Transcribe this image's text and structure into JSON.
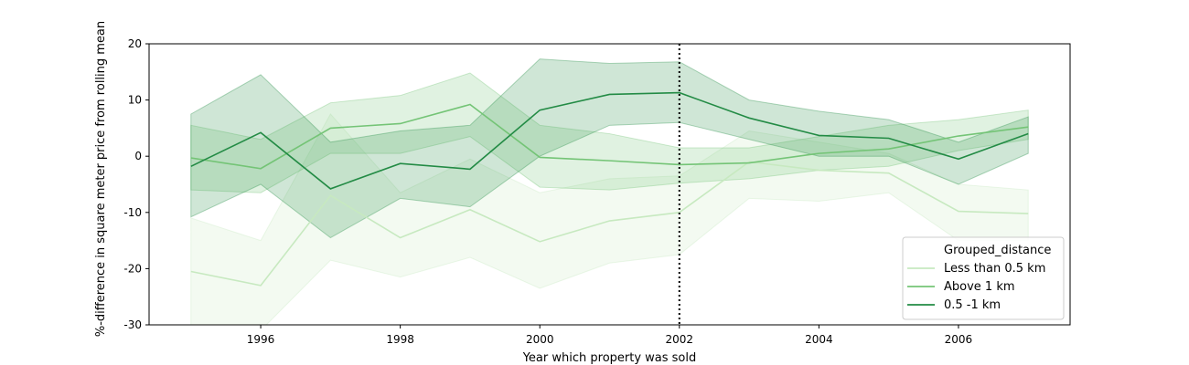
{
  "chart_data": {
    "type": "line",
    "title": "",
    "xlabel": "Year which property was sold",
    "ylabel": "%-difference in square meter price from rolling mean",
    "xlim": [
      1994.4,
      2007.6
    ],
    "ylim": [
      -30,
      20
    ],
    "xticks": [
      1996,
      1998,
      2000,
      2002,
      2004,
      2006
    ],
    "yticks": [
      -30,
      -20,
      -10,
      0,
      10,
      20
    ],
    "grid": false,
    "legend": {
      "title": "Grouped_distance",
      "placement": "lower-right"
    },
    "x": [
      1995,
      1996,
      1997,
      1998,
      1999,
      2000,
      2001,
      2002,
      2003,
      2004,
      2005,
      2006,
      2007
    ],
    "vline": {
      "x": 2002,
      "style": "dotted",
      "color": "#000000"
    },
    "series": [
      {
        "name": "Less than 0.5 km",
        "color": "#c7e9c0",
        "values": [
          -20.5,
          -23,
          -7,
          -14.5,
          -9.5,
          -15.2,
          -11.5,
          -10,
          -1,
          -2.5,
          -3,
          -9.8,
          -10.2
        ],
        "lower": [
          -32,
          -31,
          -18.5,
          -21.5,
          -18,
          -23.5,
          -19,
          -17.5,
          -7.5,
          -8,
          -6.5,
          -15,
          -15
        ],
        "upper": [
          -11,
          -15,
          7.5,
          -6.5,
          -0.5,
          -6.5,
          -4,
          -3.5,
          4.5,
          2.5,
          0.5,
          -5,
          -6
        ]
      },
      {
        "name": "Above 1 km",
        "color": "#74c476",
        "values": [
          -0.3,
          -2.2,
          5,
          5.8,
          9.2,
          -0.2,
          -0.8,
          -1.5,
          -1.2,
          0.5,
          1.3,
          3.6,
          5.2
        ],
        "lower": [
          -6,
          -6.5,
          0.5,
          0.5,
          3.5,
          -5.5,
          -6,
          -4.8,
          -4,
          -2.5,
          -1.8,
          1,
          3
        ],
        "upper": [
          5.5,
          3,
          9.5,
          10.8,
          14.8,
          5.5,
          4,
          1.5,
          1.5,
          3.5,
          5.5,
          6.5,
          8.2
        ]
      },
      {
        "name": "0.5 -1 km",
        "color": "#238b45",
        "values": [
          -1.8,
          4.2,
          -5.8,
          -1.3,
          -2.3,
          8.2,
          11.0,
          11.3,
          6.8,
          3.7,
          3.2,
          -0.5,
          4
        ],
        "lower": [
          -10.8,
          -5,
          -14.5,
          -7.5,
          -9,
          0,
          5.5,
          6,
          3,
          0,
          0,
          -5,
          0.5
        ],
        "upper": [
          7.5,
          14.5,
          2.5,
          4.5,
          5.5,
          17.3,
          16.5,
          16.8,
          10,
          8,
          6.5,
          2.5,
          7
        ]
      }
    ]
  }
}
